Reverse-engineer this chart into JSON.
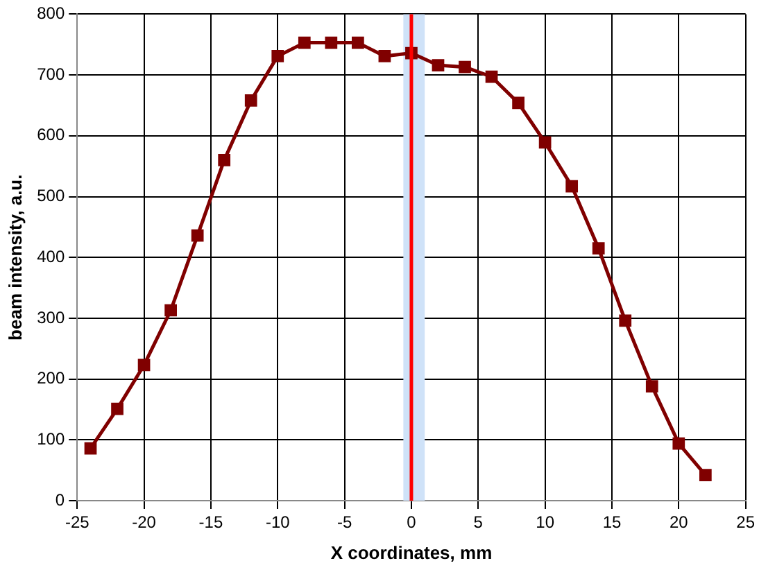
{
  "chart_data": {
    "type": "line",
    "xlabel": "X coordinates, mm",
    "ylabel": "beam intensity, a.u.",
    "x": [
      -24,
      -22,
      -20,
      -18,
      -16,
      -14,
      -12,
      -10,
      -8,
      -6,
      -4,
      -2,
      0,
      2,
      4,
      6,
      8,
      10,
      12,
      14,
      16,
      18,
      20,
      22
    ],
    "series": [
      {
        "color": "#800000",
        "values": [
          86,
          151,
          223,
          313,
          436,
          560,
          658,
          731,
          753,
          753,
          753,
          731,
          736,
          716,
          713,
          697,
          654,
          589,
          517,
          415,
          296,
          188,
          94,
          42
        ]
      }
    ],
    "xlim": [
      -25,
      25
    ],
    "xticks": [
      -25,
      -20,
      -15,
      -10,
      -5,
      0,
      5,
      10,
      15,
      20,
      25
    ],
    "ylim": [
      0,
      800
    ],
    "yticks": [
      0,
      100,
      200,
      300,
      400,
      500,
      600,
      700,
      800
    ],
    "ref_lines": [
      {
        "axis": "x",
        "value": 0,
        "color": "#ff0000"
      }
    ],
    "bands": [
      {
        "axis": "x",
        "from": -0.6,
        "to": 1,
        "color": "#cfe2f8"
      }
    ],
    "grid": true,
    "legend": false,
    "marker": "square",
    "line_style": "solid"
  }
}
